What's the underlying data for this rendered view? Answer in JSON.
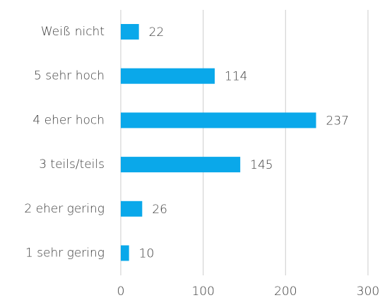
{
  "chart_data": {
    "type": "bar",
    "orientation": "horizontal",
    "categories": [
      "Weiß nicht",
      "5 sehr hoch",
      "4 eher hoch",
      "3 teils/teils",
      "2 eher gering",
      "1 sehr gering"
    ],
    "values": [
      22,
      114,
      237,
      145,
      26,
      10
    ],
    "color": "#0aa8ea",
    "xlim": [
      0,
      300
    ],
    "xticks": [
      0,
      100,
      200,
      300
    ],
    "grid": true
  }
}
